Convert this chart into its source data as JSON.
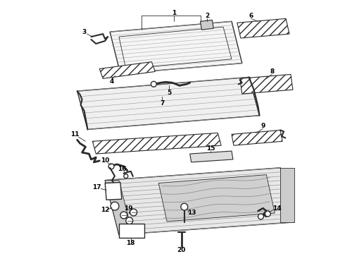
{
  "background_color": "#ffffff",
  "line_color": "#2a2a2a",
  "text_color": "#000000",
  "fig_width": 4.9,
  "fig_height": 3.6,
  "dpi": 100,
  "label_fontsize": 6.5
}
